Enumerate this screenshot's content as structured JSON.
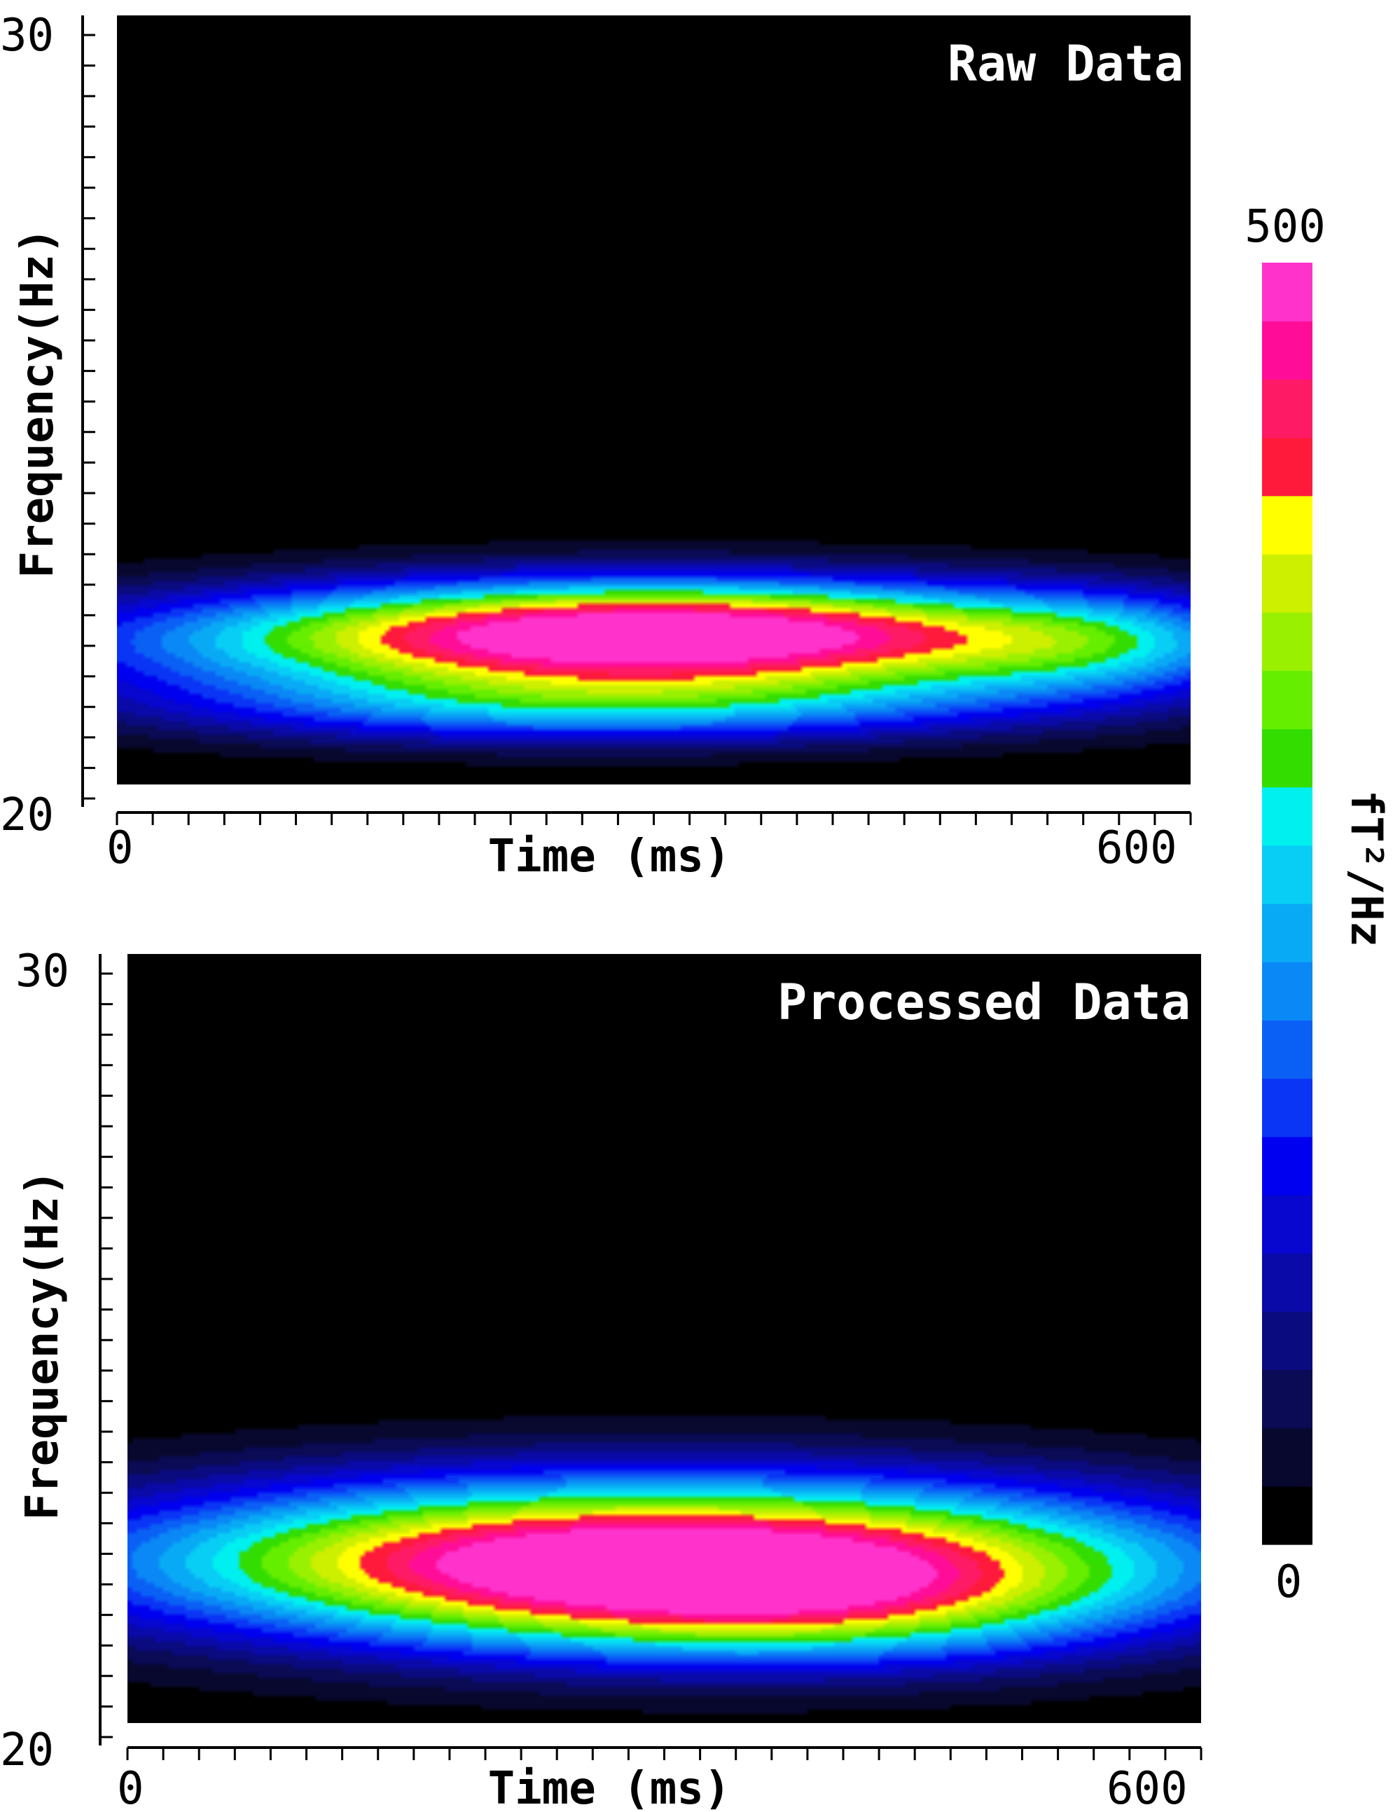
{
  "chart_data": [
    {
      "type": "heatmap",
      "title": "Raw Data",
      "xlabel": "Time (ms)",
      "ylabel": "Frequency(Hz)",
      "xlim": [
        0,
        600
      ],
      "ylim": [
        20,
        30
      ],
      "x_ticks": [
        "0",
        "600"
      ],
      "y_ticks": [
        "20",
        "30"
      ],
      "blobs": [
        {
          "t": 300,
          "f": 21.8,
          "st": 220,
          "sf": 0.5,
          "amp": 330
        },
        {
          "t": 300,
          "f": 22.1,
          "st": 160,
          "sf": 0.45,
          "amp": 260
        },
        {
          "t": 270,
          "f": 21.0,
          "st": 170,
          "sf": 0.35,
          "amp": 200
        },
        {
          "t": 550,
          "f": 21.8,
          "st": 60,
          "sf": 0.5,
          "amp": 90
        }
      ],
      "peak": {
        "time_ms": 300,
        "freq_hz": 22,
        "value": 500
      }
    },
    {
      "type": "heatmap",
      "title": "Processed Data",
      "xlabel": "Time (ms)",
      "ylabel": "Frequency(Hz)",
      "xlim": [
        0,
        600
      ],
      "ylim": [
        20,
        30
      ],
      "x_ticks": [
        "0",
        "600"
      ],
      "y_ticks": [
        "20",
        "30"
      ],
      "blobs": [
        {
          "t": 300,
          "f": 22.1,
          "st": 210,
          "sf": 0.75,
          "amp": 560
        },
        {
          "t": 380,
          "f": 21.4,
          "st": 120,
          "sf": 0.5,
          "amp": 120
        }
      ],
      "peak": {
        "time_ms": 300,
        "freq_hz": 22.1,
        "value": 500
      }
    }
  ],
  "colorbar": {
    "max_label": "500",
    "min_label": "0",
    "title": "fT²/Hz",
    "range": [
      0,
      500
    ],
    "colors": [
      "#000000",
      "#08082e",
      "#0a0a55",
      "#0b0b80",
      "#0a0aa8",
      "#0707d0",
      "#0000f0",
      "#0a35f5",
      "#0a60f5",
      "#0a88f5",
      "#08aaf5",
      "#08cdf5",
      "#00f0f0",
      "#33dd00",
      "#66ee00",
      "#99f000",
      "#ccf000",
      "#ffff00",
      "#ff1a3c",
      "#ff1a66",
      "#ff0d99",
      "#ff33cc"
    ]
  }
}
